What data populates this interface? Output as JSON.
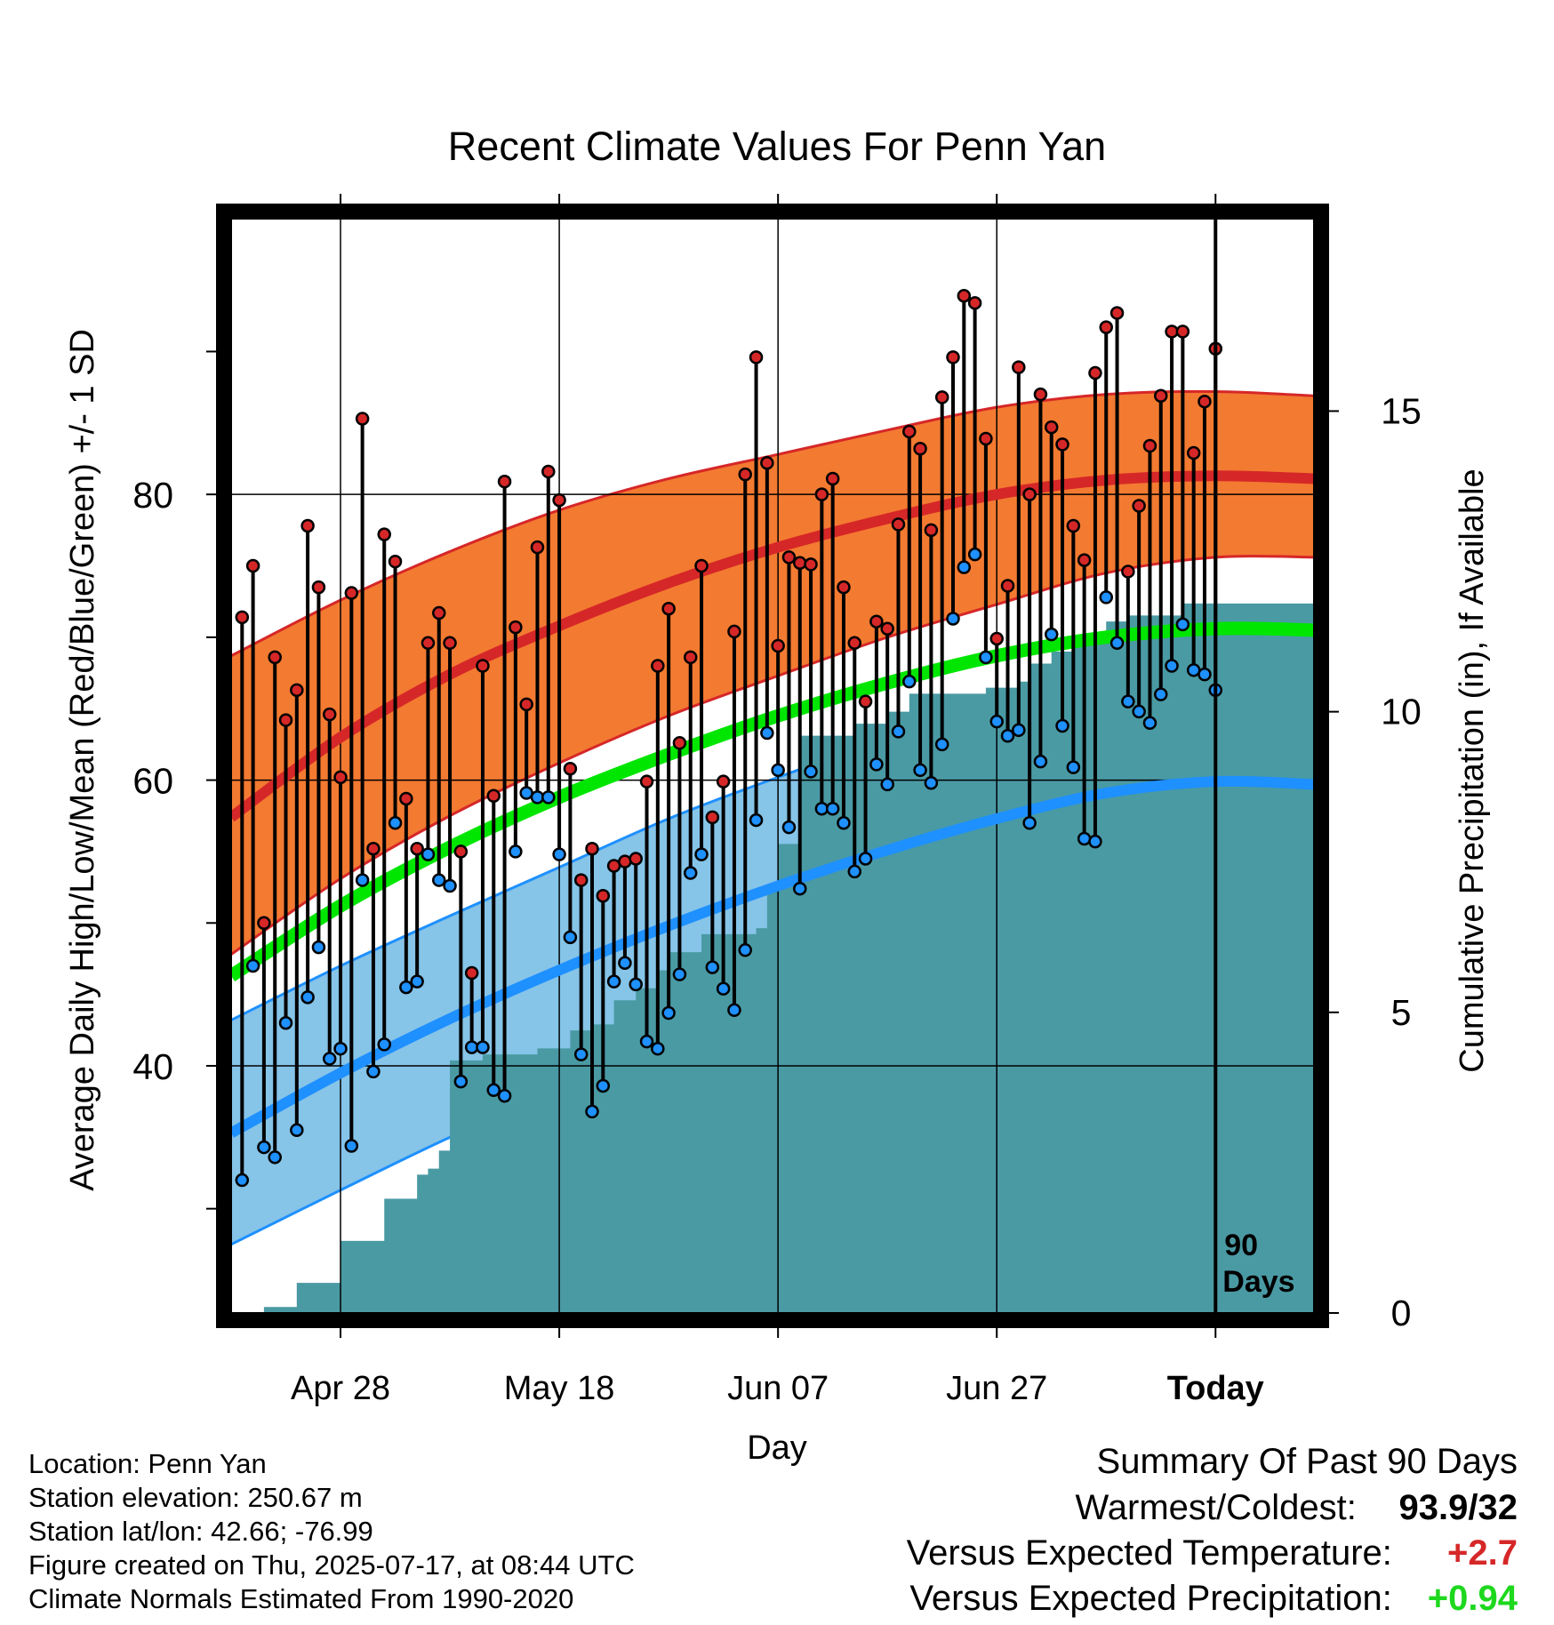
{
  "chart_data": {
    "type": "line",
    "title": "Recent Climate Values For Penn Yan",
    "xlabel": "Day",
    "ylabel": "Average Daily High/Low/Mean (Red/Blue/Green) +/- 1 SD",
    "y2label": "Cumulative Precipitation (in), If Available",
    "ylim": [
      22.7,
      99.3
    ],
    "y2lim": [
      0,
      18.2
    ],
    "xlim": [
      -90,
      9
    ],
    "x_ticks": [
      {
        "x": -80,
        "label": "Apr 28"
      },
      {
        "x": -60,
        "label": "May 18"
      },
      {
        "x": -40,
        "label": "Jun 07"
      },
      {
        "x": -20,
        "label": "Jun 27"
      },
      {
        "x": 0,
        "label": "Today"
      }
    ],
    "y_ticks": [
      40,
      60,
      80
    ],
    "y_minor_ticks": [
      30,
      50,
      70,
      90
    ],
    "y2_ticks": [
      0,
      5,
      10,
      15
    ],
    "grid": true,
    "today_marker": {
      "x": 0,
      "label_line1": "90",
      "label_line2": "Days"
    },
    "colors": {
      "high": "#d62728",
      "high_band": "#f37a31",
      "low": "#1e90ff",
      "low_band": "#86c4e8",
      "mean": "#00e600",
      "precip": "#4a9aa4",
      "stem": "#000000",
      "frame": "#000000"
    },
    "normals": {
      "x": [
        -90,
        -80,
        -70,
        -60,
        -50,
        -40,
        -30,
        -20,
        -10,
        0,
        9
      ],
      "high": [
        57.4,
        63.0,
        67.4,
        70.8,
        73.8,
        76.3,
        78.3,
        80.0,
        81.0,
        81.3,
        81.1
      ],
      "high_upper": [
        68.7,
        72.6,
        76.0,
        78.9,
        81.1,
        82.8,
        84.5,
        86.1,
        87.0,
        87.2,
        86.9
      ],
      "high_lower": [
        47.8,
        53.1,
        57.5,
        61.2,
        64.5,
        67.3,
        70.0,
        72.3,
        74.5,
        75.6,
        75.6
      ],
      "low": [
        35.3,
        39.5,
        43.3,
        46.7,
        49.8,
        52.6,
        55.1,
        57.3,
        59.1,
        59.9,
        59.7
      ],
      "low_upper": [
        43.2,
        47.0,
        50.5,
        53.9,
        57.3,
        60.2,
        62.8,
        64.3,
        65.5,
        65.9,
        65.8
      ],
      "low_lower": [
        27.5,
        31.3,
        35.0,
        38.3,
        41.4,
        44.6,
        47.6,
        50.2,
        52.9,
        54.2,
        54.2
      ],
      "mean": [
        46.3,
        51.2,
        55.3,
        58.8,
        61.8,
        64.5,
        66.8,
        68.7,
        70.0,
        70.6,
        70.5
      ]
    },
    "series": [
      {
        "name": "High",
        "values": [
          71.4,
          75.0,
          50.0,
          68.6,
          64.2,
          66.3,
          77.8,
          73.5,
          64.6,
          60.2,
          73.1,
          85.3,
          55.2,
          77.2,
          75.3,
          58.7,
          55.2,
          69.6,
          71.7,
          69.6,
          55.0,
          46.5,
          68.0,
          58.9,
          80.9,
          70.7,
          65.3,
          76.3,
          81.6,
          79.6,
          60.8,
          53.0,
          55.2,
          51.9,
          54.0,
          54.3,
          54.5,
          59.9,
          68.0,
          72.0,
          62.6,
          68.6,
          75.0,
          57.4,
          59.9,
          70.4,
          81.4,
          89.6,
          82.2,
          69.4,
          75.6,
          75.2,
          75.1,
          80.0,
          81.1,
          73.5,
          69.6,
          65.5,
          71.1,
          70.6,
          77.9,
          84.4,
          83.2,
          77.5,
          86.8,
          89.6,
          93.9,
          93.4,
          83.9,
          69.9,
          73.6,
          88.9,
          80.0,
          87.0,
          84.7,
          83.5,
          77.8,
          75.4,
          88.5,
          91.7,
          92.7,
          74.6,
          79.2,
          83.4,
          86.9,
          91.4,
          91.4,
          82.9,
          86.5,
          90.2
        ]
      },
      {
        "name": "Low",
        "values": [
          32.0,
          47.0,
          34.3,
          33.6,
          43.0,
          35.5,
          44.8,
          48.3,
          40.5,
          41.2,
          34.4,
          53.0,
          39.6,
          41.5,
          57.0,
          45.5,
          45.9,
          54.8,
          53.0,
          52.6,
          38.9,
          41.3,
          41.3,
          38.3,
          37.9,
          55.0,
          59.1,
          58.8,
          58.8,
          54.8,
          49.0,
          40.8,
          36.8,
          38.6,
          45.9,
          47.2,
          45.7,
          41.7,
          41.2,
          43.7,
          46.4,
          53.5,
          54.8,
          46.9,
          45.4,
          43.9,
          48.1,
          57.2,
          63.3,
          60.7,
          56.7,
          52.4,
          60.6,
          58.0,
          58.0,
          57.0,
          53.6,
          54.5,
          61.1,
          59.7,
          63.4,
          66.9,
          60.7,
          59.8,
          62.5,
          71.3,
          74.9,
          75.8,
          68.6,
          64.1,
          63.1,
          63.5,
          57.0,
          61.3,
          70.2,
          63.8,
          60.9,
          55.9,
          55.7,
          72.8,
          69.6,
          65.5,
          64.8,
          64.0,
          66.0,
          68.0,
          70.9,
          67.7,
          67.4,
          66.3
        ]
      },
      {
        "name": "Cumulative Precipitation",
        "x": [
          -90,
          -87,
          -84,
          -83,
          -80,
          -78,
          -76,
          -74,
          -73,
          -72,
          -71,
          -70,
          -67,
          -64,
          -62,
          -60,
          -59,
          -58,
          -57,
          -55,
          -53,
          -51,
          -50,
          -47,
          -42,
          -41,
          -40,
          -39,
          -38,
          -33,
          -30,
          -28,
          -24,
          -23,
          -22,
          -21,
          -19,
          -18,
          -17,
          -16,
          -15,
          -13,
          -11,
          -10,
          -8,
          -5,
          -3,
          0,
          9
        ],
        "values": [
          0.0,
          0.1,
          0.5,
          0.5,
          1.2,
          1.2,
          1.9,
          1.9,
          2.3,
          2.4,
          2.7,
          4.2,
          4.3,
          4.3,
          4.4,
          4.4,
          4.7,
          4.7,
          4.8,
          5.2,
          5.4,
          5.7,
          6.0,
          6.3,
          6.4,
          7.1,
          7.8,
          7.8,
          9.6,
          9.8,
          10.0,
          10.3,
          10.3,
          10.3,
          10.3,
          10.4,
          10.4,
          10.5,
          10.8,
          10.8,
          11.0,
          11.2,
          11.2,
          11.5,
          11.6,
          11.6,
          11.8,
          11.8,
          11.8
        ]
      }
    ]
  },
  "info": {
    "location": "Location: Penn Yan",
    "elevation": "Station elevation: 250.67 m",
    "latlon": "Station lat/lon: 42.66; -76.99",
    "created": "Figure created on Thu, 2025-07-17, at 08:44 UTC",
    "normals": "Climate Normals Estimated From 1990-2020"
  },
  "summary": {
    "title": "Summary Of Past 90 Days",
    "warmest_coldest_label": "Warmest/Coldest:",
    "warmest_coldest_value": "93.9/32",
    "temp_label": "Versus Expected Temperature:",
    "temp_value": "+2.7",
    "temp_color": "#d62728",
    "precip_label": "Versus Expected Precipitation:",
    "precip_value": "+0.94",
    "precip_color": "#1ed81e"
  }
}
